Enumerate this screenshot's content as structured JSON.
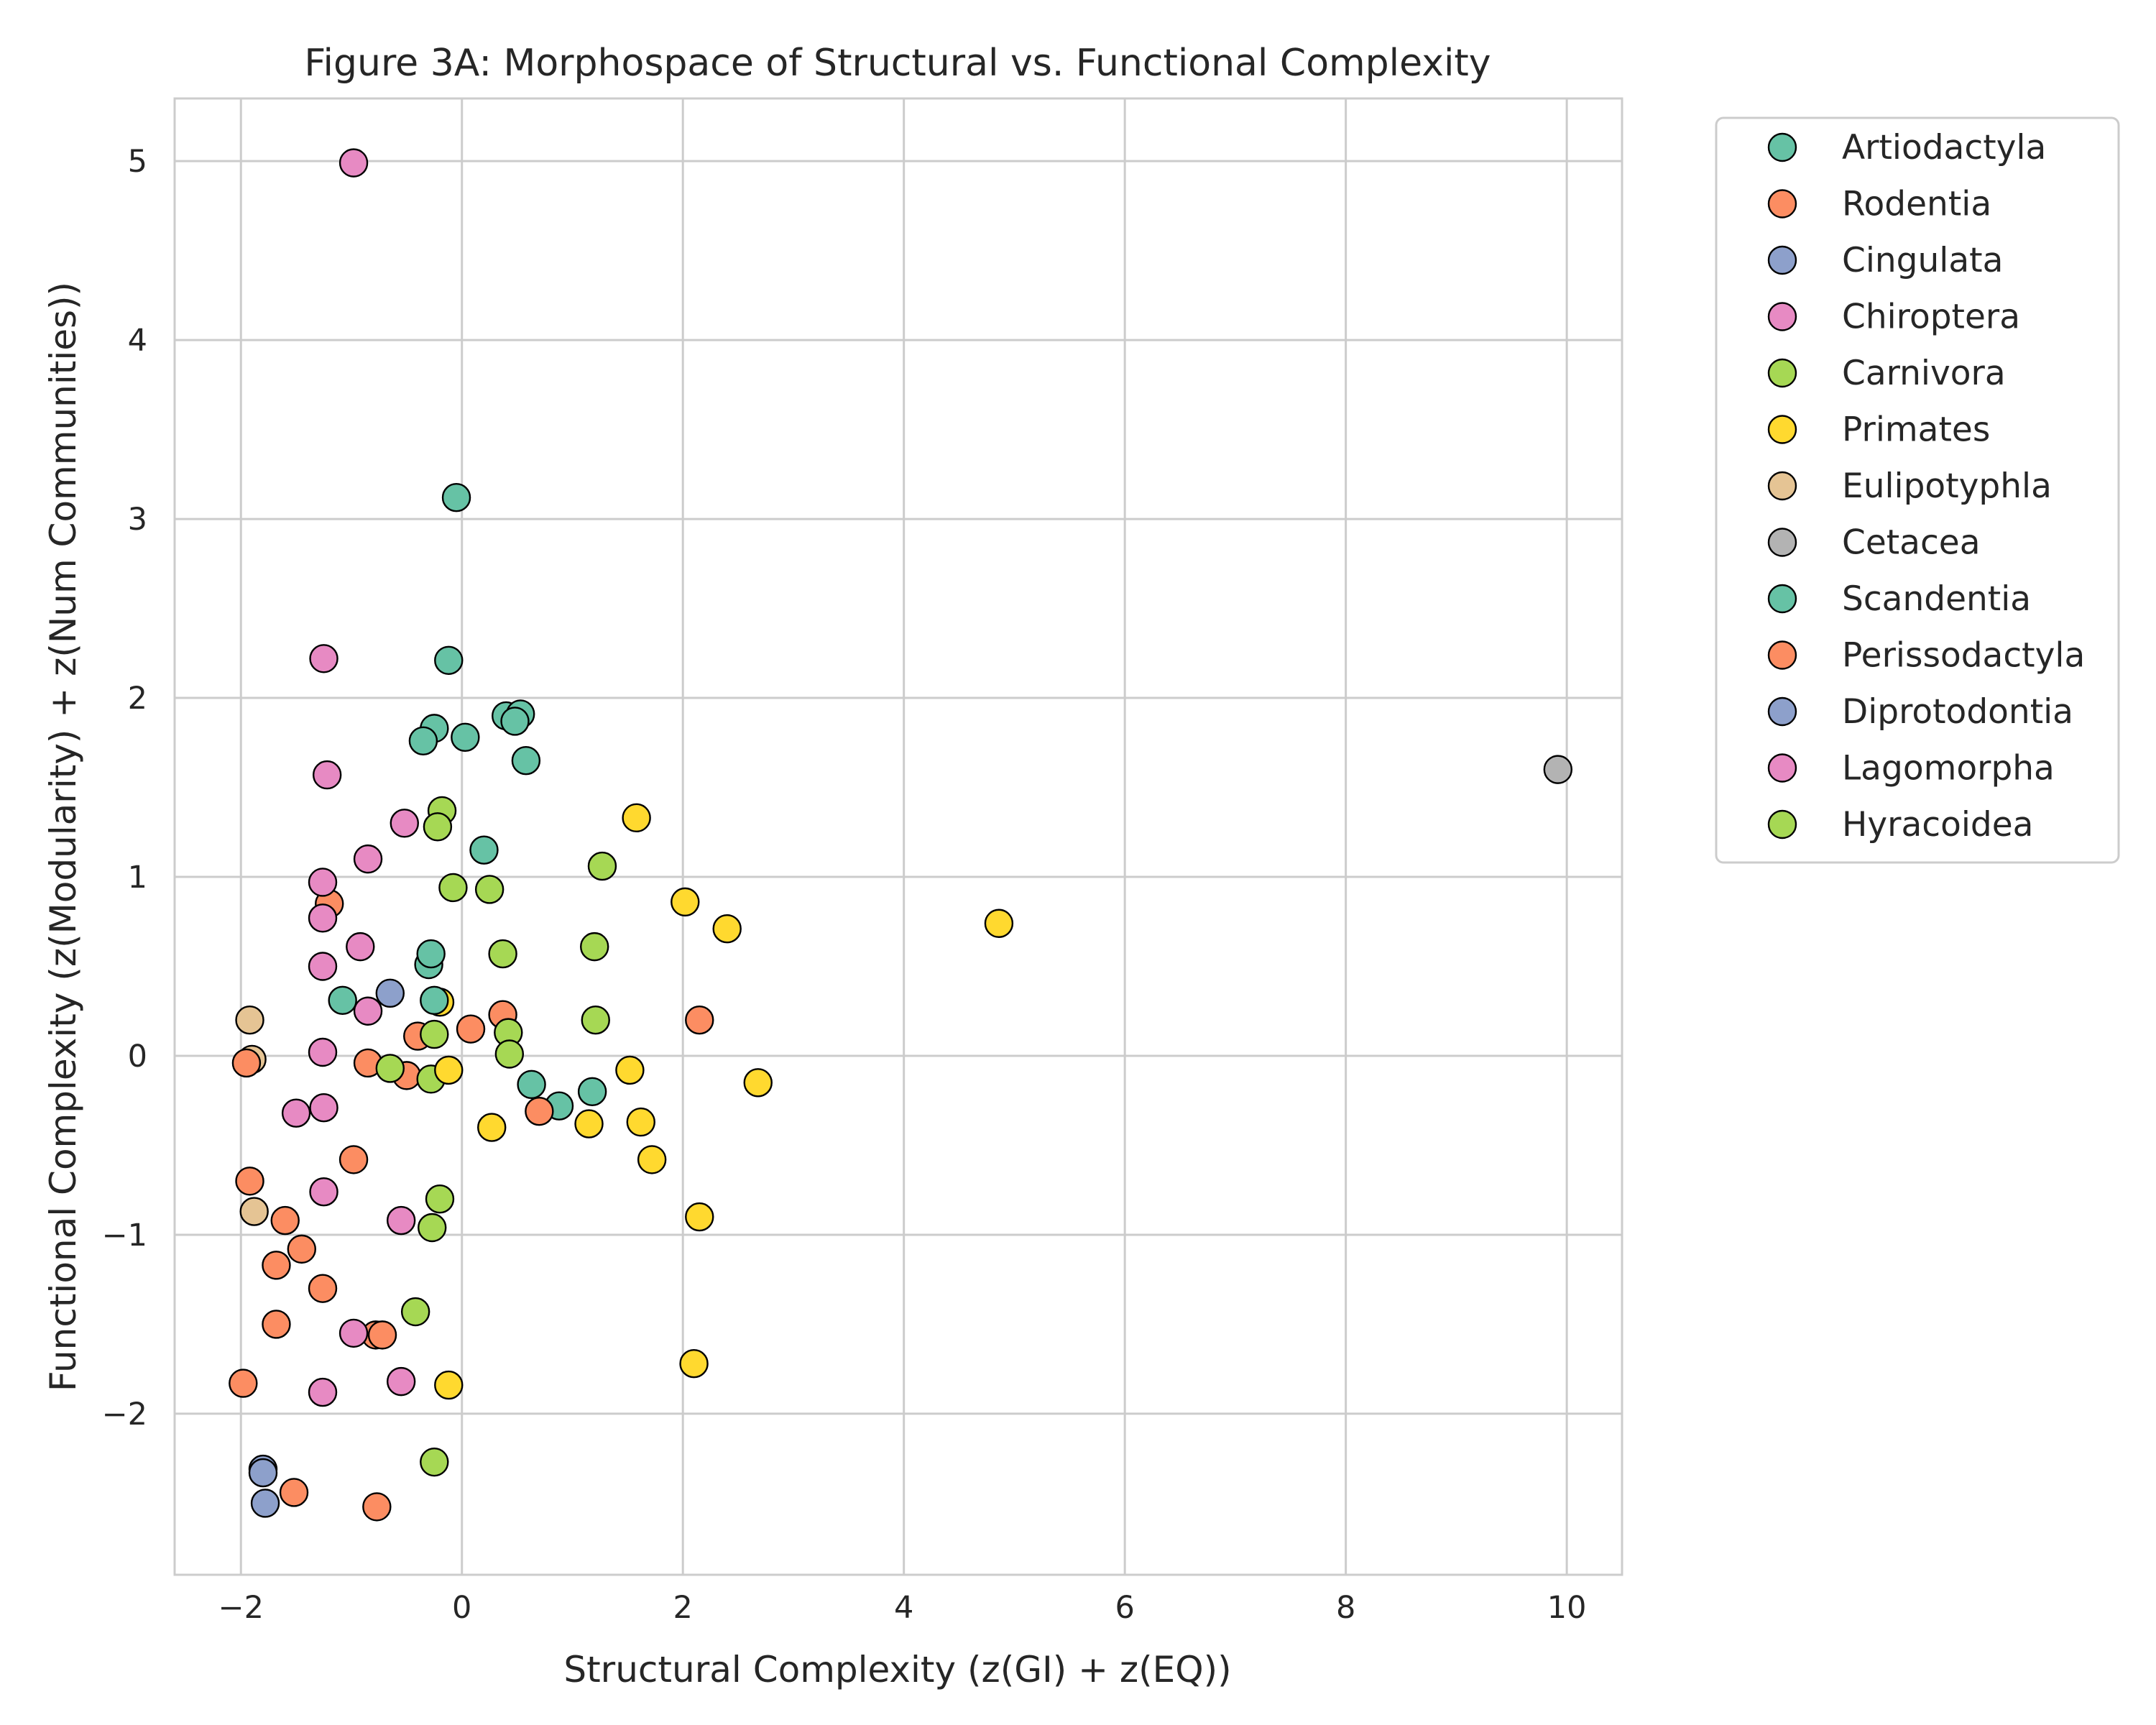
{
  "chart_data": {
    "type": "scatter",
    "title": "Figure 3A: Morphospace of Structural vs. Functional Complexity",
    "xlabel": "Structural Complexity (z(GI) + z(EQ))",
    "ylabel": "Functional Complexity (z(Modularity) + z(Num Communities))",
    "xlim": [
      -2.6,
      10.5
    ],
    "ylim": [
      -2.9,
      5.35
    ],
    "xticks": [
      -2,
      0,
      2,
      4,
      6,
      8,
      10
    ],
    "yticks": [
      -2,
      -1,
      0,
      1,
      2,
      3,
      4,
      5
    ],
    "xtick_labels": [
      "−2",
      "0",
      "2",
      "4",
      "6",
      "8",
      "10"
    ],
    "ytick_labels": [
      "−2",
      "−1",
      "0",
      "1",
      "2",
      "3",
      "4",
      "5"
    ],
    "grid": true,
    "legend_position": "outside right",
    "series": [
      {
        "name": "Artiodactyla",
        "color": "#66c2a5",
        "points": [
          [
            -0.05,
            3.12
          ],
          [
            -0.12,
            2.21
          ],
          [
            -0.25,
            1.83
          ],
          [
            -0.35,
            1.76
          ],
          [
            0.03,
            1.78
          ],
          [
            0.4,
            1.9
          ],
          [
            0.53,
            1.91
          ],
          [
            0.48,
            1.87
          ],
          [
            0.58,
            1.65
          ],
          [
            0.2,
            1.15
          ],
          [
            -0.3,
            0.51
          ],
          [
            -0.28,
            0.57
          ],
          [
            -1.08,
            0.31
          ],
          [
            0.63,
            -0.16
          ],
          [
            0.88,
            -0.28
          ],
          [
            1.18,
            -0.2
          ]
        ]
      },
      {
        "name": "Rodentia",
        "color": "#fc8d62",
        "points": [
          [
            -1.2,
            0.85
          ],
          [
            -0.4,
            0.11
          ],
          [
            0.08,
            0.15
          ],
          [
            0.37,
            0.23
          ],
          [
            2.15,
            0.2
          ],
          [
            -0.85,
            -0.04
          ],
          [
            -0.5,
            -0.11
          ],
          [
            0.7,
            -0.31
          ],
          [
            -0.98,
            -0.58
          ],
          [
            -1.92,
            -0.7
          ],
          [
            -1.6,
            -0.92
          ],
          [
            -1.45,
            -1.08
          ],
          [
            -1.68,
            -1.17
          ],
          [
            -1.26,
            -1.3
          ],
          [
            -1.68,
            -1.5
          ],
          [
            -0.78,
            -1.56
          ],
          [
            -0.72,
            -1.56
          ],
          [
            -1.98,
            -1.83
          ],
          [
            -1.52,
            -2.44
          ],
          [
            -0.77,
            -2.52
          ]
        ]
      },
      {
        "name": "Cingulata",
        "color": "#8da0cb",
        "points": [
          [
            -1.8,
            -2.31
          ],
          [
            -1.78,
            -2.5
          ]
        ]
      },
      {
        "name": "Chiroptera",
        "color": "#e78ac3",
        "points": [
          [
            -0.98,
            4.99
          ],
          [
            -1.25,
            2.22
          ],
          [
            -1.22,
            1.57
          ],
          [
            -0.52,
            1.3
          ],
          [
            -0.85,
            1.1
          ],
          [
            -1.26,
            0.97
          ],
          [
            -1.26,
            0.77
          ],
          [
            -0.92,
            0.61
          ],
          [
            -1.26,
            0.5
          ],
          [
            -0.85,
            0.25
          ],
          [
            -1.26,
            0.02
          ],
          [
            -1.25,
            -0.29
          ],
          [
            -1.5,
            -0.32
          ],
          [
            -1.25,
            -0.76
          ],
          [
            -0.55,
            -0.92
          ],
          [
            -0.98,
            -1.55
          ],
          [
            -0.55,
            -1.82
          ],
          [
            -1.26,
            -1.88
          ]
        ]
      },
      {
        "name": "Carnivora",
        "color": "#a6d854",
        "points": [
          [
            -0.18,
            1.37
          ],
          [
            -0.22,
            1.28
          ],
          [
            -0.08,
            0.94
          ],
          [
            0.25,
            0.93
          ],
          [
            1.27,
            1.06
          ],
          [
            0.37,
            0.57
          ],
          [
            1.2,
            0.61
          ],
          [
            1.21,
            0.2
          ],
          [
            0.42,
            0.13
          ],
          [
            0.43,
            0.01
          ],
          [
            -0.25,
            0.12
          ],
          [
            -0.65,
            -0.07
          ],
          [
            -0.28,
            -0.13
          ],
          [
            -0.2,
            -0.8
          ],
          [
            -0.27,
            -0.96
          ],
          [
            -0.42,
            -1.43
          ],
          [
            -0.25,
            -2.27
          ]
        ]
      },
      {
        "name": "Primates",
        "color": "#ffd92f",
        "points": [
          [
            1.58,
            1.33
          ],
          [
            2.02,
            0.86
          ],
          [
            2.4,
            0.71
          ],
          [
            4.86,
            0.74
          ],
          [
            -0.2,
            0.3
          ],
          [
            -0.12,
            -0.08
          ],
          [
            1.52,
            -0.08
          ],
          [
            2.68,
            -0.15
          ],
          [
            0.27,
            -0.4
          ],
          [
            1.15,
            -0.38
          ],
          [
            1.62,
            -0.37
          ],
          [
            1.72,
            -0.58
          ],
          [
            2.15,
            -0.9
          ],
          [
            2.1,
            -1.72
          ],
          [
            -0.12,
            -1.84
          ]
        ]
      },
      {
        "name": "Eulipotyphla",
        "color": "#e5c494",
        "points": [
          [
            -1.92,
            0.2
          ],
          [
            -1.9,
            -0.02
          ],
          [
            -1.88,
            -0.87
          ]
        ]
      },
      {
        "name": "Cetacea",
        "color": "#b3b3b3",
        "points": [
          [
            9.92,
            1.6
          ]
        ]
      },
      {
        "name": "Scandentia",
        "color": "#66c2a5",
        "points": [
          [
            -0.25,
            0.31
          ]
        ]
      },
      {
        "name": "Perissodactyla",
        "color": "#fc8d62",
        "points": [
          [
            -1.95,
            -0.04
          ]
        ]
      },
      {
        "name": "Diprotodontia",
        "color": "#8da0cb",
        "points": [
          [
            -0.65,
            0.35
          ],
          [
            -1.8,
            -2.33
          ]
        ]
      },
      {
        "name": "Lagomorpha",
        "color": "#e78ac3",
        "points": []
      },
      {
        "name": "Hyracoidea",
        "color": "#a6d854",
        "points": []
      }
    ]
  }
}
